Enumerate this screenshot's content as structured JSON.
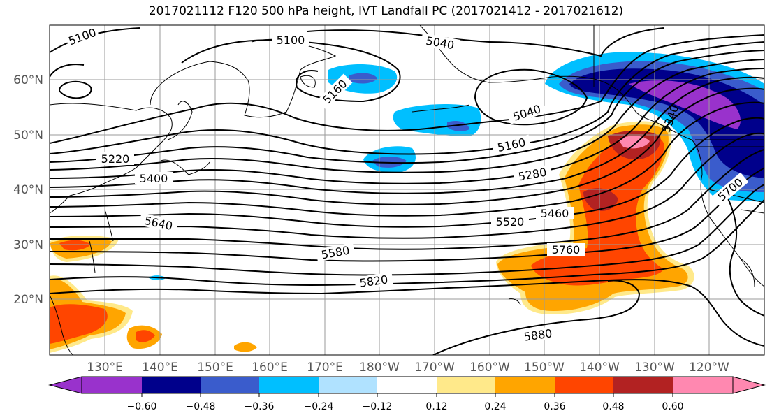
{
  "title": "2017021112 F120 500 hPa height, IVT Landfall PC (2017021412 - 2017021612)",
  "lat_labels": [
    "60°N",
    "50°N",
    "40°N",
    "30°N",
    "20°N"
  ],
  "lon_labels": [
    "130°E",
    "140°E",
    "150°E",
    "160°E",
    "170°E",
    "180°W",
    "170°W",
    "160°W",
    "150°W",
    "140°W",
    "130°W",
    "120°W"
  ],
  "contour_labels": [
    "5100",
    "5100",
    "5040",
    "5160",
    "5040",
    "5160",
    "5220",
    "5400",
    "5280",
    "5460",
    "5520",
    "5640",
    "5580",
    "5760",
    "5820",
    "5880",
    "5700",
    "5340"
  ],
  "colorbar": {
    "ticks": [
      "−0.60",
      "−0.48",
      "−0.36",
      "−0.24",
      "−0.12",
      "0.12",
      "0.24",
      "0.36",
      "0.48",
      "0.60"
    ],
    "colors": [
      "#9932cc",
      "#00008b",
      "#3a5ccc",
      "#00bfff",
      "#b0e2ff",
      "#ffffff",
      "#ffe98a",
      "#ffa500",
      "#ff4500",
      "#b22222",
      "#ff88b0"
    ]
  }
}
